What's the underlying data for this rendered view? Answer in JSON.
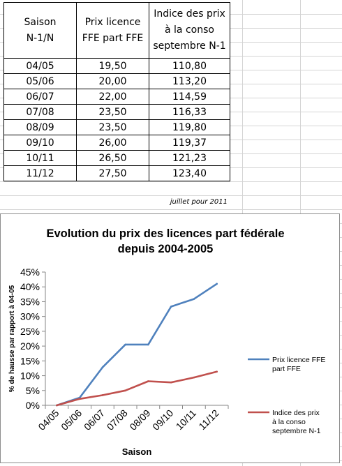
{
  "table": {
    "headers": [
      "Saison N-1/N",
      "Prix licence FFE part FFE",
      "Indice des prix à la conso septembre N-1"
    ],
    "header_lines": [
      [
        "Saison",
        "N-1/N"
      ],
      [
        "Prix licence",
        "FFE part FFE"
      ],
      [
        "Indice des prix",
        "à la conso",
        "septembre N-1"
      ]
    ],
    "rows": [
      [
        "04/05",
        "19,50",
        "110,80"
      ],
      [
        "05/06",
        "20,00",
        "113,20"
      ],
      [
        "06/07",
        "22,00",
        "114,59"
      ],
      [
        "07/08",
        "23,50",
        "116,33"
      ],
      [
        "08/09",
        "23,50",
        "119,80"
      ],
      [
        "09/10",
        "26,00",
        "119,37"
      ],
      [
        "10/11",
        "26,50",
        "121,23"
      ],
      [
        "11/12",
        "27,50",
        "123,40"
      ]
    ],
    "note": "juillet pour 2011"
  },
  "chart_data": {
    "type": "line",
    "title": "Evolution du prix des licences part fédérale depuis 2004-2005",
    "title_lines": [
      "Evolution du prix des licences part fédérale",
      "depuis 2004-2005"
    ],
    "xlabel": "Saison",
    "ylabel": "% de hausse par rapport à 04-05",
    "categories": [
      "04/05",
      "05/06",
      "06/07",
      "07/08",
      "08/09",
      "09/10",
      "10/11",
      "11/12"
    ],
    "ylim": [
      0,
      45
    ],
    "yticks": [
      "0%",
      "5%",
      "10%",
      "15%",
      "20%",
      "25%",
      "30%",
      "35%",
      "40%",
      "45%"
    ],
    "ytick_values": [
      0,
      5,
      10,
      15,
      20,
      25,
      30,
      35,
      40,
      45
    ],
    "grid": false,
    "legend_position": "right",
    "series": [
      {
        "name": "Prix licence FFE part FFE",
        "legend_lines": [
          "Prix licence FFE",
          "part FFE"
        ],
        "color": "#4f81bd",
        "values": [
          0,
          2.56,
          12.82,
          20.51,
          20.51,
          33.33,
          35.9,
          41.03
        ]
      },
      {
        "name": "Indice des prix à la conso septembre N-1",
        "legend_lines": [
          "Indice des prix",
          "à la conso",
          "septembre N-1"
        ],
        "color": "#c0504d",
        "values": [
          0,
          2.17,
          3.42,
          4.99,
          8.12,
          7.73,
          9.41,
          11.37
        ]
      }
    ]
  }
}
